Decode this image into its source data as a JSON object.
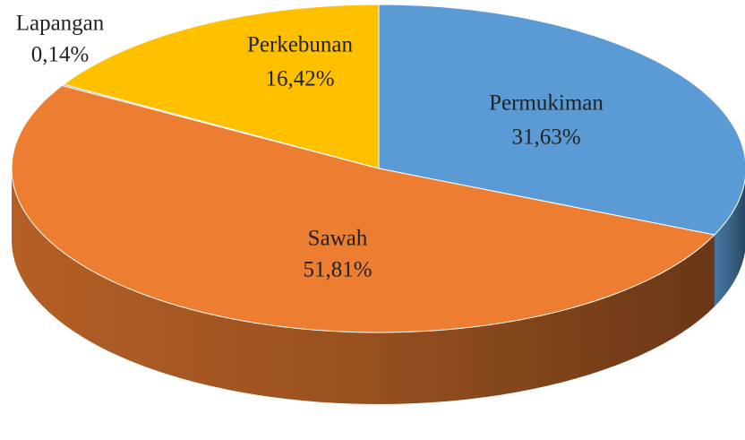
{
  "chart_data": {
    "type": "pie",
    "categories": [
      "Permukiman",
      "Sawah",
      "Lapangan",
      "Perkebunan"
    ],
    "values": [
      31.63,
      51.81,
      0.14,
      16.42
    ],
    "value_labels": [
      "31,63%",
      "51,81%",
      "0,14%",
      "16,42%"
    ],
    "colors": [
      "#5b9bd5",
      "#ed7d31",
      "#a5a5a5",
      "#ffc000"
    ]
  }
}
